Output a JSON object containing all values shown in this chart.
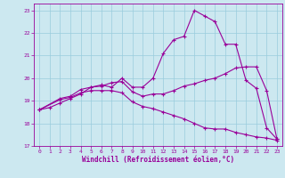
{
  "xlabel": "Windchill (Refroidissement éolien,°C)",
  "bg_color": "#cce8f0",
  "line_color": "#990099",
  "grid_color": "#99ccdd",
  "xlim": [
    -0.5,
    23.5
  ],
  "ylim": [
    17,
    23.3
  ],
  "xticks": [
    0,
    1,
    2,
    3,
    4,
    5,
    6,
    7,
    8,
    9,
    10,
    11,
    12,
    13,
    14,
    15,
    16,
    17,
    18,
    19,
    20,
    21,
    22,
    23
  ],
  "yticks": [
    17,
    18,
    19,
    20,
    21,
    22,
    23
  ],
  "line1_x": [
    0,
    1,
    2,
    3,
    4,
    5,
    6,
    7,
    8,
    9,
    10,
    11,
    12,
    13,
    14,
    15,
    16,
    17,
    18,
    19,
    20,
    21,
    22,
    23
  ],
  "line1_y": [
    18.6,
    18.7,
    18.9,
    19.1,
    19.3,
    19.6,
    19.7,
    19.6,
    20.0,
    19.6,
    19.6,
    20.0,
    21.1,
    21.7,
    21.85,
    23.0,
    22.75,
    22.5,
    21.5,
    21.5,
    19.9,
    19.55,
    17.8,
    17.3
  ],
  "line2_x": [
    0,
    2,
    3,
    4,
    5,
    6,
    7,
    8,
    9,
    10,
    11,
    12,
    13,
    14,
    15,
    16,
    17,
    18,
    19,
    20,
    21,
    22,
    23
  ],
  "line2_y": [
    18.6,
    19.1,
    19.2,
    19.5,
    19.6,
    19.65,
    19.8,
    19.85,
    19.4,
    19.2,
    19.3,
    19.3,
    19.45,
    19.65,
    19.75,
    19.9,
    20.0,
    20.2,
    20.45,
    20.5,
    20.5,
    19.45,
    17.3
  ],
  "line3_x": [
    0,
    2,
    3,
    4,
    5,
    6,
    7,
    8,
    9,
    10,
    11,
    12,
    13,
    14,
    15,
    16,
    17,
    18,
    19,
    20,
    21,
    22,
    23
  ],
  "line3_y": [
    18.6,
    19.05,
    19.15,
    19.35,
    19.45,
    19.45,
    19.45,
    19.35,
    18.95,
    18.75,
    18.65,
    18.5,
    18.35,
    18.2,
    18.0,
    17.8,
    17.75,
    17.75,
    17.6,
    17.5,
    17.4,
    17.35,
    17.25
  ]
}
